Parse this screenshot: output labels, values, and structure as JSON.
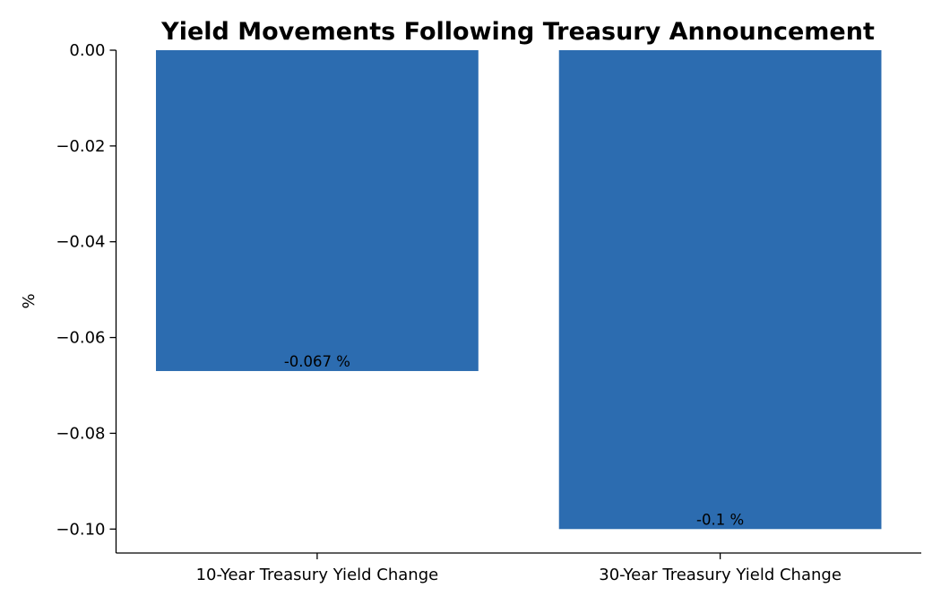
{
  "chart_data": {
    "type": "bar",
    "title": "Yield Movements Following Treasury Announcement",
    "xlabel": "",
    "ylabel": "%",
    "categories": [
      "10-Year Treasury Yield Change",
      "30-Year Treasury Yield Change"
    ],
    "values": [
      -0.067,
      -0.1
    ],
    "data_labels": [
      "-0.067 %",
      "-0.1 %"
    ],
    "ylim": [
      -0.105,
      0.0
    ],
    "yticks": [
      0.0,
      -0.02,
      -0.04,
      -0.06,
      -0.08,
      -0.1
    ],
    "ytick_labels": [
      "0.00",
      "−0.02",
      "−0.04",
      "−0.06",
      "−0.08",
      "−0.10"
    ],
    "bar_color": "#2c6cb0",
    "grid": false,
    "legend": "none"
  }
}
